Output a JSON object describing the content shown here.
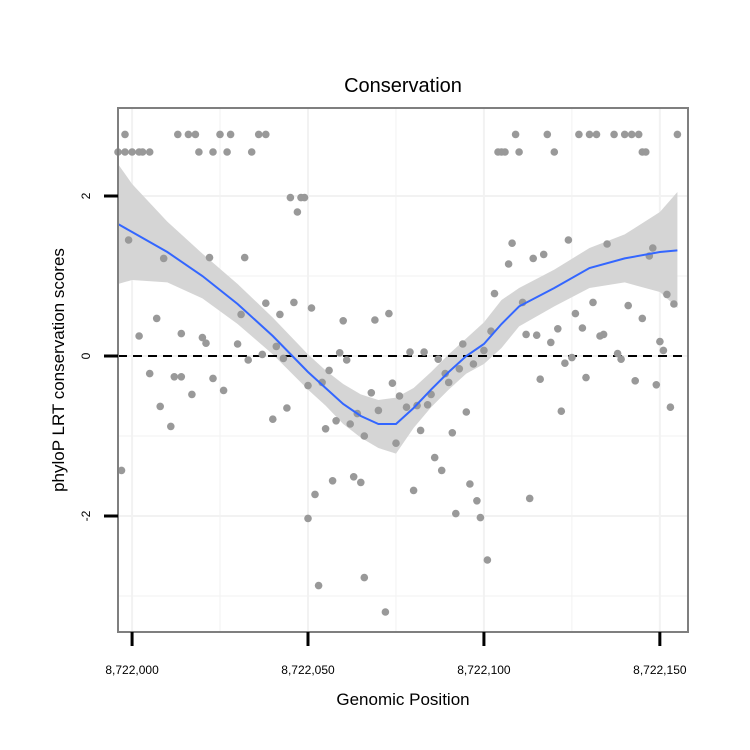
{
  "chart_data": {
    "type": "scatter",
    "title": "Conservation",
    "xlabel": "Genomic Position",
    "ylabel": "phyloP LRT conservation scores",
    "xlim": [
      8721996,
      8722158
    ],
    "ylim": [
      -3.45,
      3.1
    ],
    "x_ticks": [
      8722000,
      8722050,
      8722100,
      8722150
    ],
    "x_tick_labels": [
      "8,722,000",
      "8,722,050",
      "8,722,100",
      "8,722,150"
    ],
    "y_ticks": [
      -2,
      0,
      2
    ],
    "y_tick_labels": [
      "-2",
      "0",
      "2"
    ],
    "y_minor_gridlines": [
      -3,
      -1,
      1
    ],
    "x_minor_gridlines": [
      8722025,
      8722075,
      8722125
    ],
    "reference_line": {
      "y": 0,
      "style": "dashed",
      "color": "#000000"
    },
    "colors": {
      "points": "#999999",
      "smooth_line": "#3366FF",
      "confidence_band": "#D3D3D3",
      "panel_border": "#7F7F7F",
      "grid": "#F2F2F2"
    },
    "series": [
      {
        "name": "scores",
        "points": [
          [
            8721996,
            2.55
          ],
          [
            8721998,
            2.55
          ],
          [
            8721998,
            2.77
          ],
          [
            8722000,
            2.55
          ],
          [
            8722002,
            2.55
          ],
          [
            8722003,
            2.55
          ],
          [
            8722005,
            2.55
          ],
          [
            8721997,
            -1.43
          ],
          [
            8721999,
            1.45
          ],
          [
            8722002,
            0.25
          ],
          [
            8722005,
            -0.22
          ],
          [
            8722007,
            0.47
          ],
          [
            8722008,
            -0.63
          ],
          [
            8722009,
            1.22
          ],
          [
            8722011,
            -0.88
          ],
          [
            8722012,
            -0.26
          ],
          [
            8722013,
            2.77
          ],
          [
            8722014,
            -0.26
          ],
          [
            8722014,
            0.28
          ],
          [
            8722016,
            2.77
          ],
          [
            8722017,
            -0.48
          ],
          [
            8722018,
            2.77
          ],
          [
            8722019,
            2.55
          ],
          [
            8722020,
            0.23
          ],
          [
            8722021,
            0.16
          ],
          [
            8722022,
            1.23
          ],
          [
            8722023,
            -0.28
          ],
          [
            8722023,
            2.55
          ],
          [
            8722025,
            2.77
          ],
          [
            8722026,
            -0.43
          ],
          [
            8722027,
            2.55
          ],
          [
            8722028,
            2.77
          ],
          [
            8722030,
            0.15
          ],
          [
            8722031,
            0.52
          ],
          [
            8722032,
            1.23
          ],
          [
            8722033,
            -0.05
          ],
          [
            8722034,
            2.55
          ],
          [
            8722036,
            2.77
          ],
          [
            8722037,
            0.02
          ],
          [
            8722038,
            0.66
          ],
          [
            8722038,
            2.77
          ],
          [
            8722040,
            -0.79
          ],
          [
            8722041,
            0.12
          ],
          [
            8722042,
            0.52
          ],
          [
            8722043,
            -0.03
          ],
          [
            8722044,
            -0.65
          ],
          [
            8722045,
            1.98
          ],
          [
            8722046,
            0.67
          ],
          [
            8722047,
            1.8
          ],
          [
            8722048,
            1.98
          ],
          [
            8722049,
            1.98
          ],
          [
            8722050,
            -0.37
          ],
          [
            8722050,
            -2.03
          ],
          [
            8722051,
            0.6
          ],
          [
            8722052,
            -1.73
          ],
          [
            8722053,
            -2.87
          ],
          [
            8722054,
            -0.33
          ],
          [
            8722055,
            -0.91
          ],
          [
            8722056,
            -0.18
          ],
          [
            8722057,
            -1.56
          ],
          [
            8722058,
            -0.81
          ],
          [
            8722059,
            0.04
          ],
          [
            8722060,
            0.44
          ],
          [
            8722061,
            -0.05
          ],
          [
            8722062,
            -0.85
          ],
          [
            8722063,
            -1.51
          ],
          [
            8722064,
            -0.72
          ],
          [
            8722065,
            -1.58
          ],
          [
            8722066,
            -2.77
          ],
          [
            8722066,
            -1.0
          ],
          [
            8722068,
            -0.46
          ],
          [
            8722069,
            0.45
          ],
          [
            8722070,
            -0.68
          ],
          [
            8722072,
            -3.2
          ],
          [
            8722073,
            0.53
          ],
          [
            8722074,
            -0.34
          ],
          [
            8722075,
            -1.09
          ],
          [
            8722076,
            -0.5
          ],
          [
            8722078,
            -0.64
          ],
          [
            8722079,
            0.05
          ],
          [
            8722080,
            -1.68
          ],
          [
            8722081,
            -0.62
          ],
          [
            8722082,
            -0.93
          ],
          [
            8722083,
            0.05
          ],
          [
            8722084,
            -0.61
          ],
          [
            8722085,
            -0.48
          ],
          [
            8722086,
            -1.27
          ],
          [
            8722087,
            -0.04
          ],
          [
            8722088,
            -1.43
          ],
          [
            8722089,
            -0.22
          ],
          [
            8722090,
            -0.33
          ],
          [
            8722091,
            -0.96
          ],
          [
            8722092,
            -1.97
          ],
          [
            8722093,
            -0.16
          ],
          [
            8722094,
            0.15
          ],
          [
            8722095,
            -0.7
          ],
          [
            8722096,
            -1.6
          ],
          [
            8722097,
            -0.1
          ],
          [
            8722098,
            -1.81
          ],
          [
            8722099,
            -2.02
          ],
          [
            8722100,
            0.07
          ],
          [
            8722101,
            -2.55
          ],
          [
            8722102,
            0.31
          ],
          [
            8722103,
            0.78
          ],
          [
            8722104,
            2.55
          ],
          [
            8722105,
            2.55
          ],
          [
            8722106,
            2.55
          ],
          [
            8722107,
            1.15
          ],
          [
            8722108,
            1.41
          ],
          [
            8722109,
            2.77
          ],
          [
            8722110,
            2.55
          ],
          [
            8722111,
            0.67
          ],
          [
            8722112,
            0.27
          ],
          [
            8722113,
            -1.78
          ],
          [
            8722114,
            1.22
          ],
          [
            8722115,
            0.26
          ],
          [
            8722116,
            -0.29
          ],
          [
            8722117,
            1.27
          ],
          [
            8722118,
            2.77
          ],
          [
            8722119,
            0.17
          ],
          [
            8722120,
            2.55
          ],
          [
            8722121,
            0.34
          ],
          [
            8722122,
            -0.69
          ],
          [
            8722123,
            -0.09
          ],
          [
            8722124,
            1.45
          ],
          [
            8722125,
            -0.02
          ],
          [
            8722126,
            0.53
          ],
          [
            8722127,
            2.77
          ],
          [
            8722128,
            0.35
          ],
          [
            8722129,
            -0.27
          ],
          [
            8722130,
            2.77
          ],
          [
            8722131,
            0.67
          ],
          [
            8722132,
            2.77
          ],
          [
            8722133,
            0.25
          ],
          [
            8722134,
            0.27
          ],
          [
            8722135,
            1.4
          ],
          [
            8722137,
            2.77
          ],
          [
            8722138,
            0.03
          ],
          [
            8722139,
            -0.04
          ],
          [
            8722140,
            2.77
          ],
          [
            8722141,
            0.63
          ],
          [
            8722142,
            2.77
          ],
          [
            8722143,
            -0.31
          ],
          [
            8722144,
            2.77
          ],
          [
            8722145,
            0.47
          ],
          [
            8722145,
            2.55
          ],
          [
            8722146,
            2.55
          ],
          [
            8722147,
            1.25
          ],
          [
            8722148,
            1.35
          ],
          [
            8722149,
            -0.36
          ],
          [
            8722150,
            0.18
          ],
          [
            8722151,
            0.07
          ],
          [
            8722152,
            0.77
          ],
          [
            8722153,
            -0.64
          ],
          [
            8722154,
            0.65
          ],
          [
            8722155,
            2.77
          ]
        ]
      },
      {
        "name": "loess_smooth",
        "points": [
          [
            8721996,
            1.65
          ],
          [
            8722000,
            1.55
          ],
          [
            8722010,
            1.3
          ],
          [
            8722020,
            1.0
          ],
          [
            8722030,
            0.65
          ],
          [
            8722040,
            0.25
          ],
          [
            8722050,
            -0.2
          ],
          [
            8722055,
            -0.4
          ],
          [
            8722060,
            -0.6
          ],
          [
            8722065,
            -0.75
          ],
          [
            8722070,
            -0.85
          ],
          [
            8722075,
            -0.85
          ],
          [
            8722080,
            -0.65
          ],
          [
            8722085,
            -0.42
          ],
          [
            8722090,
            -0.2
          ],
          [
            8722095,
            0.0
          ],
          [
            8722100,
            0.15
          ],
          [
            8722105,
            0.4
          ],
          [
            8722110,
            0.62
          ],
          [
            8722120,
            0.85
          ],
          [
            8722130,
            1.1
          ],
          [
            8722140,
            1.22
          ],
          [
            8722150,
            1.3
          ],
          [
            8722155,
            1.32
          ]
        ]
      }
    ],
    "confidence_band": {
      "x": [
        8721996,
        8722000,
        8722010,
        8722020,
        8722030,
        8722040,
        8722050,
        8722055,
        8722060,
        8722065,
        8722070,
        8722075,
        8722080,
        8722085,
        8722090,
        8722095,
        8722100,
        8722105,
        8722110,
        8722120,
        8722130,
        8722140,
        8722150,
        8722155
      ],
      "upper": [
        2.4,
        2.15,
        1.68,
        1.28,
        0.9,
        0.48,
        0.02,
        -0.18,
        -0.35,
        -0.48,
        -0.55,
        -0.52,
        -0.4,
        -0.2,
        0.02,
        0.22,
        0.42,
        0.7,
        0.85,
        1.08,
        1.35,
        1.52,
        1.8,
        2.05
      ],
      "lower": [
        0.9,
        0.95,
        0.92,
        0.72,
        0.4,
        0.02,
        -0.42,
        -0.62,
        -0.85,
        -1.02,
        -1.15,
        -1.22,
        -0.9,
        -0.64,
        -0.42,
        -0.22,
        -0.1,
        0.1,
        0.37,
        0.62,
        0.85,
        0.92,
        0.8,
        0.6
      ]
    }
  }
}
